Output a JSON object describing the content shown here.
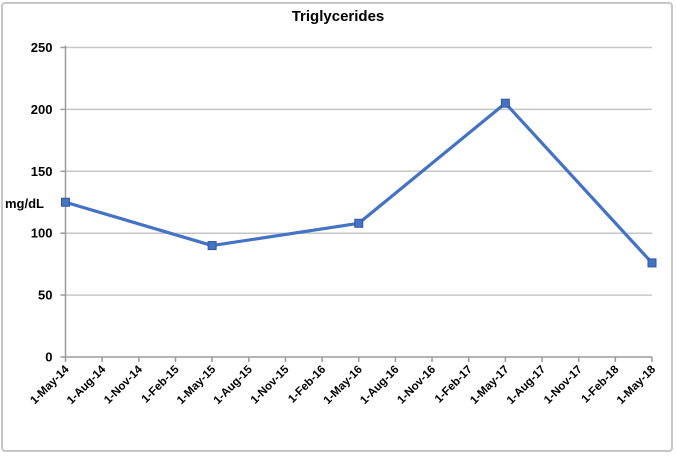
{
  "window": {
    "background": "#ffffff",
    "frame_border_color": "#c6c6c6"
  },
  "chart_data": {
    "type": "line",
    "title": "Triglycerides",
    "xlabel": "",
    "ylabel": "mg/dL",
    "categories": [
      "1-May-14",
      "1-Aug-14",
      "1-Nov-14",
      "1-Feb-15",
      "1-May-15",
      "1-Aug-15",
      "1-Nov-15",
      "1-Feb-16",
      "1-May-16",
      "1-Aug-16",
      "1-Nov-16",
      "1-Feb-17",
      "1-May-17",
      "1-Aug-17",
      "1-Nov-17",
      "1-Feb-18",
      "1-May-18"
    ],
    "series": [
      {
        "name": "Triglycerides",
        "values": [
          125,
          null,
          null,
          null,
          90,
          null,
          null,
          null,
          108,
          null,
          null,
          null,
          205,
          null,
          null,
          null,
          76
        ]
      }
    ],
    "ylim": [
      0,
      250
    ],
    "yticks": [
      0,
      50,
      100,
      150,
      200,
      250
    ],
    "grid": true,
    "legend": false,
    "x_label_rotation": -45,
    "marker": "square",
    "line_color": "#4472c4",
    "marker_color": "#4472c4",
    "marker_edge_color": "#35569b",
    "gridline_color": "#c6c6c6",
    "axis_color": "#9b9b9b",
    "text_color": "#000000"
  }
}
